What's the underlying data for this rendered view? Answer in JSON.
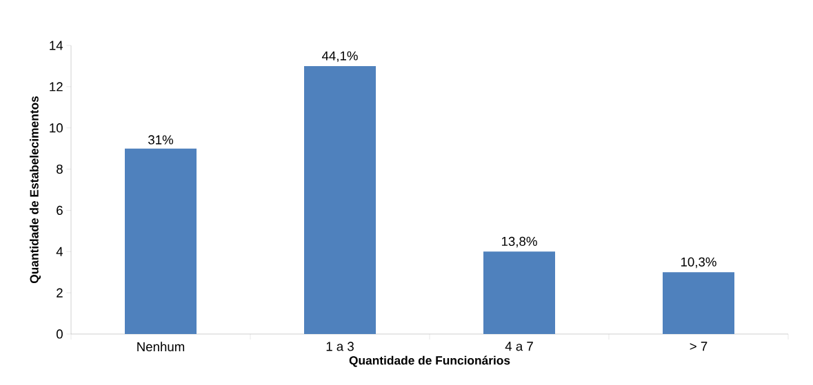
{
  "chart_data": {
    "type": "bar",
    "xlabel": "Quantidade de Funcionários",
    "ylabel": "Quantidade de Estabelecimentos",
    "categories": [
      "Nenhum",
      "1 a 3",
      "4 a 7",
      "> 7"
    ],
    "values": [
      9,
      13,
      4,
      3
    ],
    "annotations": [
      {
        "text": "31%",
        "x": "Nenhum",
        "y": 9
      },
      {
        "text": "44,1%",
        "x": "1 a 3",
        "y": 13
      },
      {
        "text": "13,8%",
        "x": "4 a 7",
        "y": 4
      },
      {
        "text": "10,3%",
        "x": "> 7",
        "y": 3
      }
    ],
    "color": "#4f81bd",
    "ylim": [
      0,
      14
    ],
    "yticks": [
      0,
      2,
      4,
      6,
      8,
      10,
      12,
      14
    ],
    "grid": false
  }
}
